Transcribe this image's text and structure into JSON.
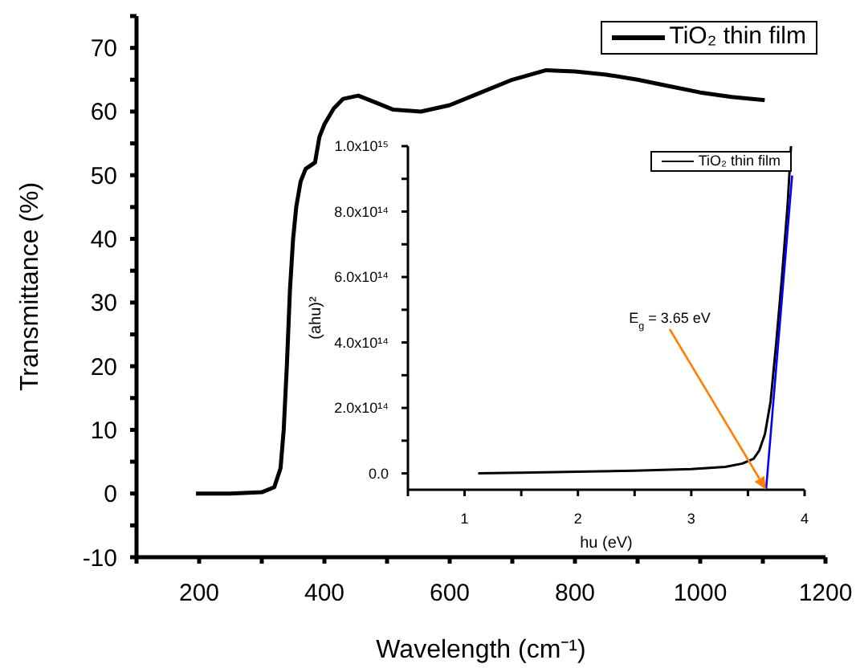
{
  "chart_data": [
    {
      "type": "line",
      "xlabel": "Wavelength (cm⁻¹)",
      "ylabel": "Transmittance (%)",
      "xlim": [
        100,
        1200
      ],
      "ylim": [
        -10,
        75
      ],
      "xticks": [
        {
          "value": 100,
          "label": null
        },
        200,
        {
          "value": 300,
          "label": null
        },
        400,
        {
          "value": 500,
          "label": null
        },
        600,
        {
          "value": 700,
          "label": null
        },
        800,
        {
          "value": 900,
          "label": null
        },
        1000,
        {
          "value": 1100,
          "label": null
        },
        1200
      ],
      "yticks": [
        -10,
        {
          "value": -5,
          "label": null
        },
        0,
        {
          "value": 5,
          "label": null
        },
        10,
        {
          "value": 15,
          "label": null
        },
        20,
        {
          "value": 25,
          "label": null
        },
        30,
        {
          "value": 35,
          "label": null
        },
        40,
        {
          "value": 45,
          "label": null
        },
        50,
        {
          "value": 55,
          "label": null
        },
        60,
        {
          "value": 65,
          "label": null
        },
        70,
        {
          "value": 75,
          "label": null
        }
      ],
      "legend": "top right",
      "grid": false,
      "marker": "none",
      "line_style": "solid",
      "series": [
        {
          "name": "TiO₂ thin film",
          "color": "#000000",
          "x": [
            195,
            250,
            300,
            320,
            330,
            335,
            340,
            345,
            350,
            355,
            362,
            370,
            385,
            392,
            400,
            415,
            430,
            454,
            480,
            510,
            554,
            600,
            650,
            700,
            754,
            800,
            850,
            900,
            950,
            1000,
            1050,
            1103
          ],
          "values": [
            0,
            0,
            0.2,
            1,
            4,
            10,
            20,
            32,
            40,
            45,
            49,
            51,
            52,
            56,
            58,
            60.5,
            62,
            62.5,
            61.5,
            60.3,
            60,
            61,
            63,
            65,
            66.5,
            66.3,
            65.8,
            65,
            64,
            63,
            62.3,
            61.8
          ]
        }
      ]
    },
    {
      "type": "line",
      "xlabel": "hu (eV)",
      "ylabel": "(ahu)²",
      "xlim": [
        0.5,
        4
      ],
      "ylim": [
        -50000000000000.0,
        1000000000000000.0
      ],
      "xticks": [
        {
          "value": 0.5,
          "label": null
        },
        1,
        {
          "value": 1.5,
          "label": null
        },
        2,
        {
          "value": 2.5,
          "label": null
        },
        3,
        {
          "value": 3.5,
          "label": null
        },
        4
      ],
      "yticks": [
        {
          "value": 0,
          "label": "0.0"
        },
        {
          "value": 100000000000000.0,
          "label": null
        },
        {
          "value": 200000000000000.0,
          "label": "2.0x10¹⁴"
        },
        {
          "value": 300000000000000.0,
          "label": null
        },
        {
          "value": 400000000000000.0,
          "label": "4.0x10¹⁴"
        },
        {
          "value": 500000000000000.0,
          "label": null
        },
        {
          "value": 600000000000000.0,
          "label": "6.0x10¹⁴"
        },
        {
          "value": 700000000000000.0,
          "label": null
        },
        {
          "value": 800000000000000.0,
          "label": "8.0x10¹⁴"
        },
        {
          "value": 900000000000000.0,
          "label": null
        },
        {
          "value": 1000000000000000.0,
          "label": "1.0x10¹⁵"
        }
      ],
      "legend": "top right",
      "grid": false,
      "marker": "none",
      "line_style": "solid",
      "annotations": [
        {
          "text": "E$_{g}$ = 3.65 eV",
          "x": 3.66,
          "y": -50000000000000.0
        }
      ],
      "series": [
        {
          "name": "TiO₂ thin film",
          "color": "#000000",
          "x": [
            1.12,
            1.5,
            2,
            2.5,
            3,
            3.3,
            3.45,
            3.55,
            3.6,
            3.65,
            3.7,
            3.75,
            3.8,
            3.85,
            3.88
          ],
          "values": [
            0,
            2000000000000.0,
            5000000000000.0,
            8000000000000.0,
            13000000000000.0,
            20000000000000.0,
            30000000000000.0,
            45000000000000.0,
            70000000000000.0,
            120000000000000.0,
            220000000000000.0,
            400000000000000.0,
            600000000000000.0,
            820000000000000.0,
            1000000000000000.0
          ]
        },
        {
          "color": "#0000ff",
          "x": [
            3.66,
            3.89
          ],
          "values": [
            -50000000000000.0,
            910000000000000.0
          ]
        }
      ]
    }
  ]
}
